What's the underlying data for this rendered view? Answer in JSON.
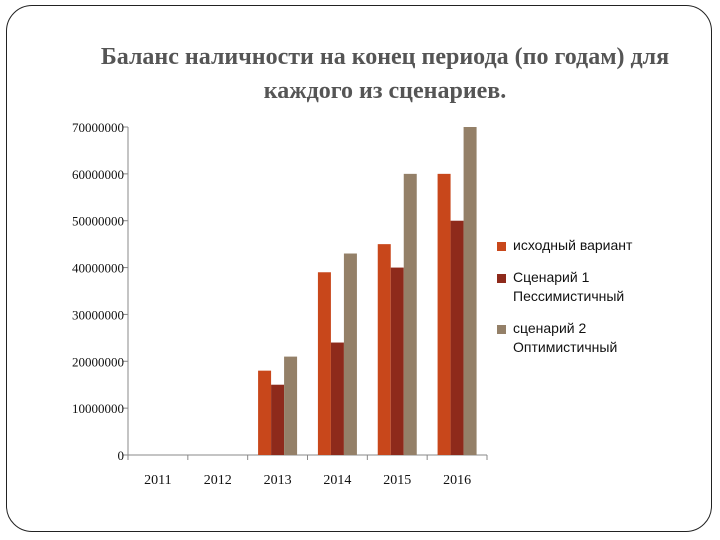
{
  "chart_data": {
    "type": "bar",
    "title": "Баланс наличности на конец периода (по годам) для каждого из сценариев.",
    "categories": [
      "2011",
      "2012",
      "2013",
      "2014",
      "2015",
      "2016"
    ],
    "series": [
      {
        "name": "исходный вариант",
        "color": "#C8471B",
        "values": [
          0,
          0,
          18000000,
          39000000,
          45000000,
          60000000
        ]
      },
      {
        "name": "Сценарий 1 Пессимистичный",
        "color": "#8E2A1B",
        "values": [
          0,
          0,
          15000000,
          24000000,
          40000000,
          50000000
        ]
      },
      {
        "name": "сценарий 2 Оптимистичный",
        "color": "#948068",
        "values": [
          0,
          0,
          21000000,
          43000000,
          60000000,
          70000000
        ]
      }
    ],
    "yticks": [
      "0",
      "10000000",
      "20000000",
      "30000000",
      "40000000",
      "50000000",
      "60000000",
      "70000000"
    ],
    "ylim": [
      0,
      70000000
    ],
    "xlabel": "",
    "ylabel": "",
    "grid": false,
    "legend_position": "right"
  }
}
